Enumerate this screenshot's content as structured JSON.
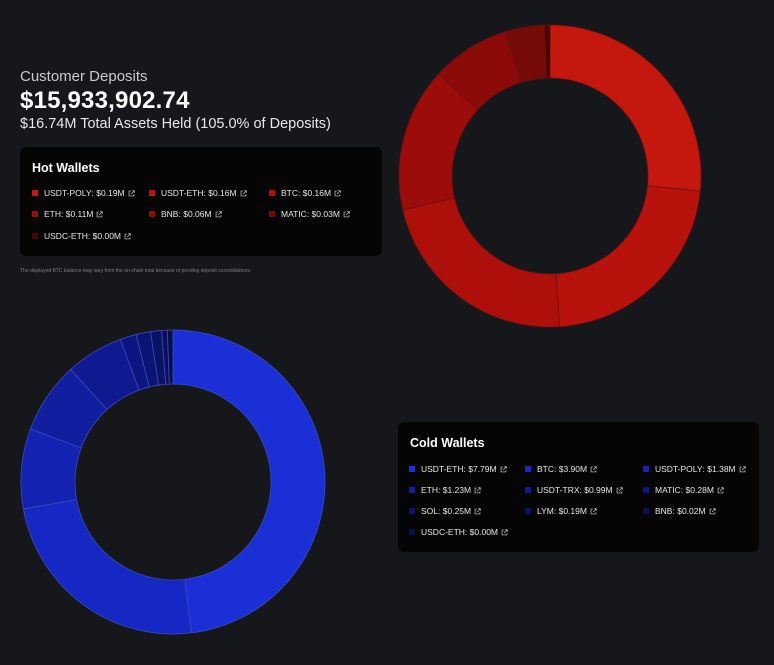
{
  "header": {
    "subtitle": "Customer Deposits",
    "total": "$15,933,902.74",
    "assets": "$16.74M Total Assets Held (105.0% of Deposits)"
  },
  "disclaimer": "The displayed BTC balance may vary from the on-chain total because of pending deposit consolidations.",
  "colors": {
    "background": "#16171b",
    "panel": "#050505"
  },
  "chart_data": [
    {
      "type": "pie",
      "title": "Hot Wallets",
      "unit": "$M",
      "labels": [
        "USDT-POLY",
        "USDT-ETH",
        "BTC",
        "ETH",
        "BNB",
        "MATIC",
        "USDC-ETH"
      ],
      "values": [
        0.19,
        0.16,
        0.16,
        0.11,
        0.06,
        0.03,
        0.0
      ],
      "value_labels": [
        "$0.19M",
        "$0.16M",
        "$0.16M",
        "$0.11M",
        "$0.06M",
        "$0.03M",
        "$0.00M"
      ],
      "colors": [
        "#c4180f",
        "#b8120c",
        "#ad100b",
        "#9c0d09",
        "#8a0b08",
        "#760a07",
        "#4a0605"
      ],
      "icon": "external-link-icon"
    },
    {
      "type": "pie",
      "title": "Cold Wallets",
      "unit": "$M",
      "labels": [
        "USDT-ETH",
        "BTC",
        "USDT-POLY",
        "ETH",
        "USDT-TRX",
        "MATIC",
        "SOL",
        "LYM",
        "BNB",
        "USDC-ETH"
      ],
      "values": [
        7.79,
        3.9,
        1.38,
        1.23,
        0.99,
        0.28,
        0.25,
        0.19,
        0.02,
        0.0
      ],
      "value_labels": [
        "$7.79M",
        "$3.90M",
        "$1.38M",
        "$1.23M",
        "$0.99M",
        "$0.28M",
        "$0.25M",
        "$0.19M",
        "$0.02M",
        "$0.00M"
      ],
      "colors": [
        "#1a30d6",
        "#1628c4",
        "#1322b0",
        "#111ea0",
        "#0f1a90",
        "#0d1680",
        "#0b1472",
        "#0a1266",
        "#09105a",
        "#080e4c"
      ],
      "icon": "external-link-icon"
    }
  ]
}
